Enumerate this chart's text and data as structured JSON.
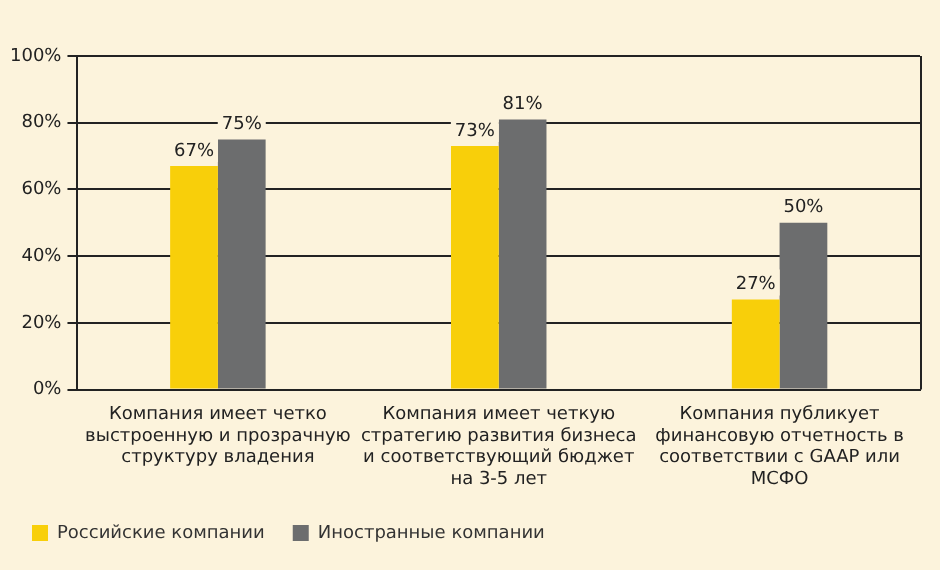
{
  "chart_data": {
    "type": "bar",
    "categories": [
      "Компания имеет четко выстроенную и прозрачную структуру владения",
      "Компания имеет четкую стратегию развития бизнеса и соответствующий бюджет на 3-5 лет",
      "Компания публикует финансовую отчетность в соответствии с GAAP или МСФО"
    ],
    "series": [
      {
        "name": "Российские компании",
        "color": "#f8cf0a",
        "values": [
          67,
          73,
          27
        ]
      },
      {
        "name": "Иностранные компании",
        "color": "#6c6d6e",
        "values": [
          75,
          81,
          50
        ]
      }
    ],
    "ylim": [
      0,
      100
    ],
    "yticks": [
      {
        "value": 0,
        "label": "0%"
      },
      {
        "value": 20,
        "label": "20%"
      },
      {
        "value": 40,
        "label": "40%"
      },
      {
        "value": 60,
        "label": "60%"
      },
      {
        "value": 80,
        "label": "80%"
      },
      {
        "value": 100,
        "label": "100%"
      }
    ],
    "grid": "y",
    "legend": "bottom left",
    "value_labels": [
      [
        "67%",
        "73%",
        "27%"
      ],
      [
        "75%",
        "81%",
        "50%"
      ]
    ]
  }
}
